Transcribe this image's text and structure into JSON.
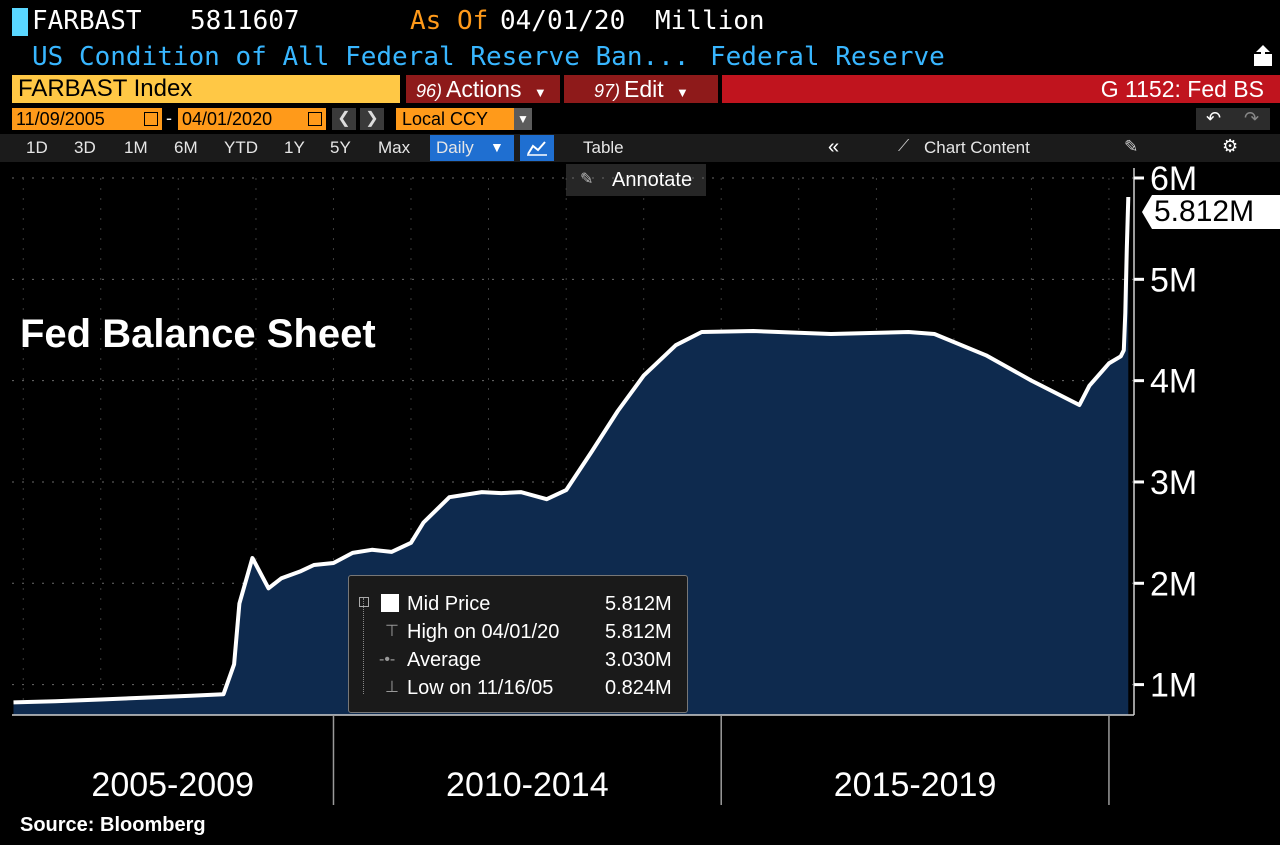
{
  "header": {
    "ticker": "FARBAST",
    "last_value": "5811607",
    "as_of_label": "As Of",
    "as_of_date": "04/01/20",
    "units": "Million",
    "description": "US Condition of All Federal Reserve Ban...",
    "source_name": "Federal Reserve"
  },
  "toolbar": {
    "security": "FARBAST Index",
    "actions_num": "96)",
    "actions_label": "Actions",
    "edit_num": "97)",
    "edit_label": "Edit",
    "graph_id": "G 1152: Fed BS",
    "start_date": "11/09/2005",
    "date_sep": "-",
    "end_date": "04/01/2020",
    "currency": "Local CCY",
    "ranges": [
      "1D",
      "3D",
      "1M",
      "6M",
      "YTD",
      "1Y",
      "5Y",
      "Max"
    ],
    "frequency": "Daily",
    "table_label": "Table",
    "chart_content_label": "Chart Content",
    "annotate_label": "Annotate"
  },
  "colors": {
    "area_fill": "#0e2a4e",
    "line": "#ffffff",
    "header_blue": "#38b6ff",
    "orange": "#ff9a1a",
    "red_bar": "#c0141e"
  },
  "chart_data": {
    "type": "area",
    "title": "Fed Balance Sheet",
    "series": [
      {
        "name": "Mid Price",
        "points": [
          [
            "2005-11-16",
            0.824
          ],
          [
            "2006-06-01",
            0.836
          ],
          [
            "2007-01-01",
            0.853
          ],
          [
            "2007-08-01",
            0.872
          ],
          [
            "2008-03-01",
            0.89
          ],
          [
            "2008-08-01",
            0.905
          ],
          [
            "2008-09-20",
            1.2
          ],
          [
            "2008-10-15",
            1.8
          ],
          [
            "2008-12-15",
            2.25
          ],
          [
            "2009-03-01",
            1.95
          ],
          [
            "2009-05-01",
            2.05
          ],
          [
            "2009-08-01",
            2.12
          ],
          [
            "2009-10-01",
            2.18
          ],
          [
            "2010-01-01",
            2.2
          ],
          [
            "2010-04-01",
            2.3
          ],
          [
            "2010-07-01",
            2.33
          ],
          [
            "2010-10-01",
            2.31
          ],
          [
            "2011-01-01",
            2.4
          ],
          [
            "2011-03-01",
            2.6
          ],
          [
            "2011-07-01",
            2.85
          ],
          [
            "2011-12-01",
            2.9
          ],
          [
            "2012-03-01",
            2.89
          ],
          [
            "2012-06-01",
            2.9
          ],
          [
            "2012-10-01",
            2.83
          ],
          [
            "2013-01-01",
            2.92
          ],
          [
            "2013-05-01",
            3.3
          ],
          [
            "2013-09-01",
            3.7
          ],
          [
            "2014-01-01",
            4.05
          ],
          [
            "2014-06-01",
            4.35
          ],
          [
            "2014-10-01",
            4.48
          ],
          [
            "2015-06-01",
            4.49
          ],
          [
            "2016-06-01",
            4.46
          ],
          [
            "2017-06-01",
            4.48
          ],
          [
            "2017-10-01",
            4.46
          ],
          [
            "2018-06-01",
            4.25
          ],
          [
            "2019-01-01",
            4.0
          ],
          [
            "2019-08-15",
            3.76
          ],
          [
            "2019-10-01",
            3.95
          ],
          [
            "2020-01-01",
            4.17
          ],
          [
            "2020-02-26",
            4.24
          ],
          [
            "2020-03-11",
            4.3
          ],
          [
            "2020-03-18",
            4.67
          ],
          [
            "2020-03-25",
            5.3
          ],
          [
            "2020-04-01",
            5.812
          ]
        ]
      }
    ],
    "ylim": [
      0.7,
      6.0
    ],
    "y_ticks": [
      1,
      2,
      3,
      4,
      5
    ],
    "y_tick_labels": [
      "1M",
      "2M",
      "3M",
      "4M",
      "5M"
    ],
    "y_top_partial_label": "6M",
    "x_period_labels": [
      "2005-2009",
      "2010-2014",
      "2015-2019"
    ],
    "last_value_label": "5.812M",
    "legend": [
      {
        "name": "Mid Price",
        "value": "5.812M"
      },
      {
        "name": "High on 04/01/20",
        "value": "5.812M"
      },
      {
        "name": "Average",
        "value": "3.030M"
      },
      {
        "name": "Low on 11/16/05",
        "value": "0.824M"
      }
    ]
  },
  "footer": {
    "source": "Source: Bloomberg"
  }
}
